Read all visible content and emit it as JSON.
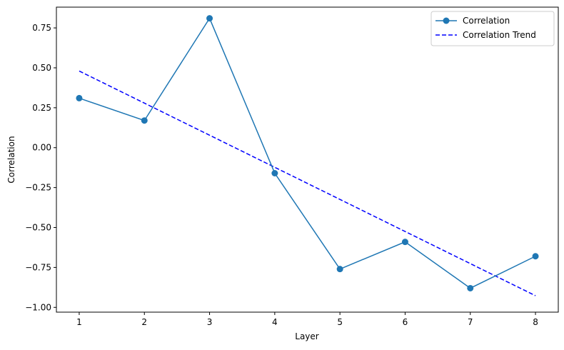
{
  "chart_data": {
    "type": "line",
    "x": [
      1,
      2,
      3,
      4,
      5,
      6,
      7,
      8
    ],
    "xlabel": "Layer",
    "ylabel": "Correlation",
    "xlim": [
      0.65,
      8.35
    ],
    "ylim": [
      -1.03,
      0.88
    ],
    "x_ticks": [
      1,
      2,
      3,
      4,
      5,
      6,
      7,
      8
    ],
    "y_ticks": [
      0.75,
      0.5,
      0.25,
      0.0,
      -0.25,
      -0.5,
      -0.75,
      -1.0
    ],
    "y_tick_labels": [
      "0.75",
      "0.50",
      "0.25",
      "0.00",
      "−0.25",
      "−0.50",
      "−0.75",
      "−1.00"
    ],
    "grid": false,
    "legend_placement": "top-right",
    "series": [
      {
        "name": "Correlation",
        "style": "solid line with circle markers",
        "color": "#1f77b4",
        "values": [
          0.31,
          0.17,
          0.81,
          -0.16,
          -0.76,
          -0.59,
          -0.88,
          -0.68
        ]
      },
      {
        "name": "Correlation Trend",
        "style": "dashed",
        "color": "#0000ff",
        "values": [
          0.48,
          0.279,
          0.078,
          -0.123,
          -0.324,
          -0.525,
          -0.726,
          -0.927
        ]
      }
    ]
  }
}
